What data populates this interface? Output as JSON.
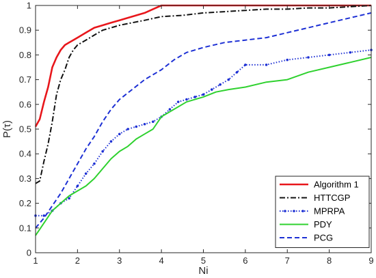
{
  "chart_data": {
    "type": "line",
    "title": "",
    "xlabel": "Ni",
    "ylabel": "P(τ)",
    "xlim": [
      1,
      9
    ],
    "ylim": [
      0,
      1
    ],
    "xticks": [
      1,
      2,
      3,
      4,
      5,
      6,
      7,
      8,
      9
    ],
    "yticks": [
      0,
      0.1,
      0.2,
      0.3,
      0.4,
      0.5,
      0.6,
      0.7,
      0.8,
      0.9,
      1
    ],
    "xtick_labels": [
      "1",
      "2",
      "3",
      "4",
      "5",
      "6",
      "7",
      "8",
      "9"
    ],
    "ytick_labels": [
      "0",
      "0.1",
      "0.2",
      "0.3",
      "0.4",
      "0.5",
      "0.6",
      "0.7",
      "0.8",
      "0.9",
      "1"
    ],
    "grid": false,
    "legend_position": "bottom-right",
    "series": [
      {
        "name": "Algorithm 1",
        "color": "#e8161b",
        "dash": "solid",
        "marker": "none",
        "x": [
          1.0,
          1.1,
          1.2,
          1.3,
          1.4,
          1.5,
          1.6,
          1.7,
          1.8,
          1.9,
          2.0,
          2.2,
          2.4,
          2.6,
          2.8,
          3.0,
          3.2,
          3.4,
          3.6,
          3.8,
          4.0,
          4.5,
          5.0,
          6.0,
          7.0,
          8.0,
          9.0
        ],
        "y": [
          0.51,
          0.54,
          0.61,
          0.67,
          0.75,
          0.79,
          0.82,
          0.84,
          0.85,
          0.86,
          0.87,
          0.89,
          0.91,
          0.92,
          0.93,
          0.94,
          0.95,
          0.96,
          0.97,
          0.985,
          1.0,
          1.0,
          1.0,
          1.0,
          1.0,
          1.0,
          1.0
        ]
      },
      {
        "name": "HTTCGP",
        "color": "#111111",
        "dash": "dashdot",
        "marker": "none",
        "x": [
          1.0,
          1.1,
          1.2,
          1.3,
          1.4,
          1.5,
          1.6,
          1.7,
          1.8,
          1.9,
          2.0,
          2.2,
          2.4,
          2.6,
          2.8,
          3.0,
          3.3,
          3.6,
          4.0,
          4.5,
          5.0,
          5.5,
          6.0,
          6.5,
          7.0,
          7.5,
          8.0,
          8.5,
          9.0
        ],
        "y": [
          0.28,
          0.29,
          0.37,
          0.44,
          0.53,
          0.64,
          0.7,
          0.74,
          0.79,
          0.82,
          0.84,
          0.86,
          0.88,
          0.9,
          0.91,
          0.92,
          0.93,
          0.94,
          0.955,
          0.96,
          0.97,
          0.975,
          0.98,
          0.985,
          0.985,
          0.99,
          0.99,
          0.995,
          1.0
        ]
      },
      {
        "name": "MPRPA",
        "color": "#1c2fd4",
        "dash": "dotted",
        "marker": "dot",
        "x": [
          1.0,
          1.2,
          1.4,
          1.6,
          1.8,
          2.0,
          2.2,
          2.4,
          2.6,
          2.8,
          3.0,
          3.2,
          3.4,
          3.6,
          3.8,
          4.0,
          4.2,
          4.4,
          4.6,
          4.8,
          5.0,
          5.2,
          5.4,
          5.6,
          5.8,
          6.0,
          6.5,
          7.0,
          7.5,
          8.0,
          8.5,
          9.0
        ],
        "y": [
          0.15,
          0.15,
          0.17,
          0.2,
          0.22,
          0.27,
          0.32,
          0.36,
          0.41,
          0.45,
          0.48,
          0.5,
          0.51,
          0.52,
          0.53,
          0.55,
          0.58,
          0.61,
          0.62,
          0.63,
          0.64,
          0.66,
          0.68,
          0.7,
          0.73,
          0.76,
          0.76,
          0.78,
          0.79,
          0.8,
          0.81,
          0.82
        ]
      },
      {
        "name": "PDY",
        "color": "#2ed12e",
        "dash": "solid",
        "marker": "none",
        "x": [
          1.0,
          1.2,
          1.4,
          1.6,
          1.8,
          2.0,
          2.2,
          2.4,
          2.6,
          2.8,
          3.0,
          3.2,
          3.4,
          3.6,
          3.8,
          4.0,
          4.3,
          4.6,
          5.0,
          5.3,
          5.6,
          6.0,
          6.5,
          7.0,
          7.5,
          8.0,
          8.5,
          9.0
        ],
        "y": [
          0.07,
          0.12,
          0.17,
          0.2,
          0.23,
          0.25,
          0.27,
          0.3,
          0.34,
          0.38,
          0.41,
          0.43,
          0.46,
          0.48,
          0.5,
          0.55,
          0.58,
          0.61,
          0.63,
          0.65,
          0.66,
          0.67,
          0.69,
          0.7,
          0.73,
          0.75,
          0.77,
          0.79
        ]
      },
      {
        "name": "PCG",
        "color": "#1c2fd4",
        "dash": "dashed",
        "marker": "none",
        "x": [
          1.0,
          1.2,
          1.4,
          1.6,
          1.8,
          2.0,
          2.2,
          2.4,
          2.6,
          2.8,
          3.0,
          3.3,
          3.6,
          4.0,
          4.3,
          4.6,
          5.0,
          5.5,
          6.0,
          6.5,
          7.0,
          7.5,
          8.0,
          8.5,
          9.0
        ],
        "y": [
          0.1,
          0.14,
          0.19,
          0.24,
          0.3,
          0.36,
          0.42,
          0.47,
          0.53,
          0.58,
          0.62,
          0.66,
          0.7,
          0.74,
          0.78,
          0.81,
          0.83,
          0.85,
          0.86,
          0.87,
          0.89,
          0.91,
          0.93,
          0.95,
          0.97
        ]
      }
    ]
  }
}
